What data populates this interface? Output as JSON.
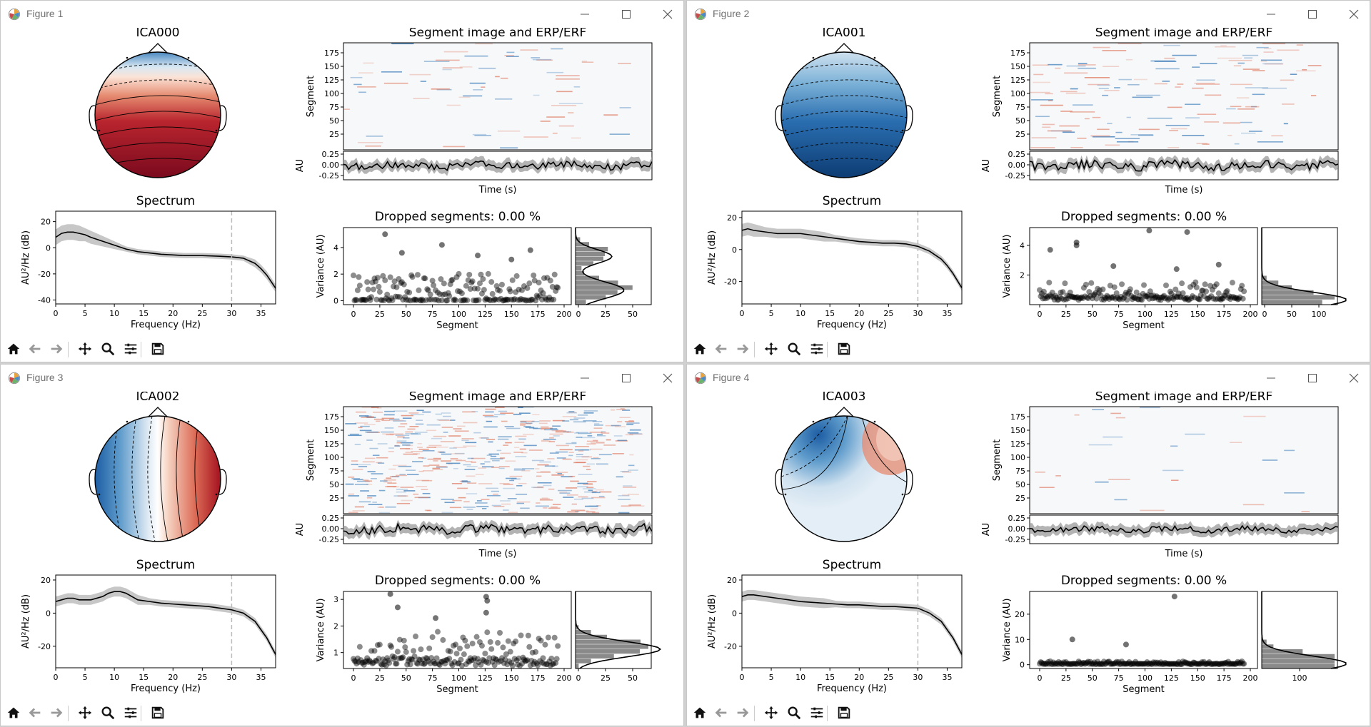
{
  "window_controls": {
    "minimize": "minimize",
    "maximize": "maximize",
    "close": "close"
  },
  "toolbar_icons": [
    "home-icon",
    "back-arrow-icon",
    "forward-arrow-icon",
    "pan-icon",
    "zoom-icon",
    "configure-subplots-icon",
    "save-icon"
  ],
  "figures": [
    {
      "title": "Figure 1",
      "component": "ICA000",
      "topomap": {
        "pattern": "front-blue-back-red",
        "colors": {
          "positive": "#b2182b",
          "negative": "#2166ac"
        }
      },
      "segment_image": {
        "title": "Segment image and ERP/ERF",
        "ylabel": "Segment",
        "yticks": [
          "175",
          "150",
          "125",
          "100",
          "75",
          "50",
          "25"
        ],
        "density": "low"
      },
      "erp": {
        "ylabel": "AU",
        "yticks": [
          "0.25",
          "0.00",
          "-0.25"
        ],
        "xlabel": "Time (s)"
      },
      "spectrum": {
        "title": "Spectrum",
        "ylabel": "AU²/Hz (dB)",
        "xlabel": "Frequency (Hz)",
        "yticks": [
          "20",
          "0",
          "-20",
          "-40"
        ],
        "ylim": [
          -43,
          28
        ],
        "xticks": [
          "0",
          "5",
          "10",
          "15",
          "20",
          "25",
          "30",
          "35"
        ],
        "xlim": [
          0,
          37.5
        ],
        "cutoff_hz": 30,
        "x": [
          0,
          1,
          2,
          3,
          4,
          5,
          6,
          8,
          10,
          12,
          14,
          16,
          18,
          20,
          22,
          25,
          28,
          30,
          32,
          34,
          35,
          36,
          37.5
        ],
        "y": [
          8,
          11,
          12,
          12,
          11,
          10,
          8,
          5,
          2,
          -1,
          -3,
          -4,
          -5,
          -5.5,
          -6,
          -6,
          -6.5,
          -7,
          -8,
          -12,
          -16,
          -21,
          -31
        ],
        "band": [
          6,
          6,
          6,
          6,
          6,
          5,
          5,
          4,
          3,
          2,
          2,
          2,
          2,
          2,
          2,
          2,
          2,
          2,
          2,
          3,
          3,
          3,
          3
        ]
      },
      "dropped": {
        "title": "Dropped segments: 0.00 %",
        "ylabel": "Variance (AU)",
        "xlabel": "Segment",
        "yticks": [
          "4",
          "2",
          "0"
        ],
        "ylim": [
          -0.3,
          5.5
        ],
        "xticks": [
          "0",
          "25",
          "50",
          "75",
          "100",
          "125",
          "150",
          "175",
          "200"
        ],
        "hist_xticks": [
          "0",
          "25",
          "50"
        ],
        "spread": [
          0,
          0.2,
          1.1,
          2.2
        ],
        "outliers": [
          {
            "x": 30,
            "y": 5
          },
          {
            "x": 84,
            "y": 4.2
          },
          {
            "x": 168,
            "y": 3.8
          },
          {
            "x": 46,
            "y": 3.6
          },
          {
            "x": 118,
            "y": 3.4
          },
          {
            "x": 150,
            "y": 3.1
          }
        ]
      }
    },
    {
      "title": "Figure 2",
      "component": "ICA001",
      "topomap": {
        "pattern": "all-blue",
        "colors": {
          "positive": "#b2182b",
          "negative": "#2166ac"
        }
      },
      "segment_image": {
        "title": "Segment image and ERP/ERF",
        "ylabel": "Segment",
        "yticks": [
          "175",
          "150",
          "125",
          "100",
          "75",
          "50",
          "25"
        ],
        "density": "medium"
      },
      "erp": {
        "ylabel": "AU",
        "yticks": [
          "0.25",
          "0.00",
          "-0.25"
        ],
        "xlabel": "Time (s)"
      },
      "spectrum": {
        "title": "Spectrum",
        "ylabel": "AU²/Hz (dB)",
        "xlabel": "Frequency (Hz)",
        "yticks": [
          "20",
          "0",
          "-20"
        ],
        "ylim": [
          -34,
          24
        ],
        "xticks": [
          "0",
          "5",
          "10",
          "15",
          "20",
          "25",
          "30",
          "35"
        ],
        "xlim": [
          0,
          37.5
        ],
        "cutoff_hz": 30,
        "x": [
          0,
          1,
          2,
          4,
          6,
          8,
          10,
          12,
          14,
          16,
          18,
          20,
          22,
          24,
          26,
          28,
          30,
          32,
          34,
          35,
          36,
          37.5
        ],
        "y": [
          12,
          13,
          12,
          11,
          10,
          10,
          10,
          9,
          8,
          7,
          6,
          5,
          4.5,
          4,
          4,
          3.5,
          2,
          -1,
          -6,
          -10,
          -15,
          -24
        ],
        "band": [
          4,
          4,
          4,
          3,
          3,
          3,
          3,
          3,
          3,
          2,
          2,
          2,
          2,
          2,
          2,
          2,
          2,
          2,
          2,
          2,
          2,
          2
        ]
      },
      "dropped": {
        "title": "Dropped segments: 0.00 %",
        "ylabel": "Variance (AU)",
        "xlabel": "Segment",
        "yticks": [
          "4",
          "2"
        ],
        "ylim": [
          0,
          5.2
        ],
        "xticks": [
          "0",
          "25",
          "50",
          "75",
          "100",
          "125",
          "150",
          "175",
          "200"
        ],
        "hist_xticks": [
          "0",
          "50",
          "100"
        ],
        "spread": [
          0.3,
          0.6,
          1.0,
          1.6
        ],
        "outliers": [
          {
            "x": 104,
            "y": 5
          },
          {
            "x": 140,
            "y": 4.9
          },
          {
            "x": 35,
            "y": 4.2
          },
          {
            "x": 35,
            "y": 4
          },
          {
            "x": 10,
            "y": 3.7
          },
          {
            "x": 70,
            "y": 2.6
          },
          {
            "x": 130,
            "y": 2.4
          },
          {
            "x": 170,
            "y": 2.7
          }
        ]
      }
    },
    {
      "title": "Figure 3",
      "component": "ICA002",
      "topomap": {
        "pattern": "left-blue-right-red",
        "colors": {
          "positive": "#b2182b",
          "negative": "#2166ac"
        }
      },
      "segment_image": {
        "title": "Segment image and ERP/ERF",
        "ylabel": "Segment",
        "yticks": [
          "175",
          "150",
          "125",
          "100",
          "75",
          "50",
          "25"
        ],
        "density": "high"
      },
      "erp": {
        "ylabel": "AU",
        "yticks": [
          "0.25",
          "0.00",
          "-0.25"
        ],
        "xlabel": "Time (s)"
      },
      "spectrum": {
        "title": "Spectrum",
        "ylabel": "AU²/Hz (dB)",
        "xlabel": "Frequency (Hz)",
        "yticks": [
          "20",
          "0",
          "-20"
        ],
        "ylim": [
          -33,
          23
        ],
        "xticks": [
          "0",
          "5",
          "10",
          "15",
          "20",
          "25",
          "30",
          "35"
        ],
        "xlim": [
          0,
          37.5
        ],
        "cutoff_hz": 30,
        "x": [
          0,
          1,
          2,
          3,
          4,
          6,
          8,
          9,
          10,
          11,
          12,
          13,
          14,
          16,
          18,
          20,
          22,
          24,
          26,
          28,
          30,
          32,
          34,
          35,
          36,
          37.5
        ],
        "y": [
          7,
          8,
          9,
          9,
          8,
          8,
          10,
          12,
          13,
          13,
          12,
          10,
          8,
          7,
          6,
          5.5,
          5,
          4.5,
          4,
          3,
          2,
          0,
          -5,
          -10,
          -15,
          -25
        ],
        "band": [
          3,
          3,
          3,
          3,
          3,
          3,
          3,
          3,
          3,
          3,
          3,
          3,
          3,
          2,
          2,
          2,
          2,
          2,
          2,
          2,
          2,
          2,
          2,
          2,
          2,
          2
        ]
      },
      "dropped": {
        "title": "Dropped segments: 0.00 %",
        "ylabel": "Variance (AU)",
        "xlabel": "Segment",
        "yticks": [
          "3",
          "2",
          "1"
        ],
        "ylim": [
          0.4,
          3.3
        ],
        "xticks": [
          "0",
          "25",
          "50",
          "75",
          "100",
          "125",
          "150",
          "175",
          "200"
        ],
        "hist_xticks": [
          "0",
          "25",
          "50"
        ],
        "spread": [
          0.5,
          0.8,
          1.2,
          1.8
        ],
        "outliers": [
          {
            "x": 35,
            "y": 3.2
          },
          {
            "x": 126,
            "y": 3.1
          },
          {
            "x": 127,
            "y": 2.95
          },
          {
            "x": 42,
            "y": 2.7
          },
          {
            "x": 126,
            "y": 2.5
          },
          {
            "x": 78,
            "y": 2.3
          }
        ]
      }
    },
    {
      "title": "Figure 4",
      "component": "ICA003",
      "topomap": {
        "pattern": "left-front-blue-right-front-red",
        "colors": {
          "positive": "#b2182b",
          "negative": "#2166ac"
        }
      },
      "segment_image": {
        "title": "Segment image and ERP/ERF",
        "ylabel": "Segment",
        "yticks": [
          "175",
          "150",
          "125",
          "100",
          "75",
          "50",
          "25"
        ],
        "density": "sparse"
      },
      "erp": {
        "ylabel": "AU",
        "yticks": [
          "0.25",
          "0.00",
          "-0.25"
        ],
        "xlabel": "Time (s)"
      },
      "spectrum": {
        "title": "Spectrum",
        "ylabel": "AU²/Hz (dB)",
        "xlabel": "Frequency (Hz)",
        "yticks": [
          "20",
          "0",
          "-20"
        ],
        "ylim": [
          -33,
          23
        ],
        "xticks": [
          "0",
          "5",
          "10",
          "15",
          "20",
          "25",
          "30",
          "35"
        ],
        "xlim": [
          0,
          37.5
        ],
        "cutoff_hz": 30,
        "x": [
          0,
          1,
          2,
          4,
          6,
          8,
          10,
          12,
          14,
          16,
          18,
          20,
          22,
          24,
          26,
          28,
          30,
          32,
          34,
          35,
          36,
          37.5
        ],
        "y": [
          10,
          11,
          11,
          10,
          9,
          8,
          7,
          6.5,
          6,
          5.5,
          5,
          5,
          4.5,
          4,
          4,
          3.5,
          3,
          0,
          -5,
          -10,
          -15,
          -25
        ],
        "band": [
          3,
          3,
          3,
          3,
          3,
          3,
          3,
          3,
          3,
          2,
          2,
          2,
          2,
          2,
          2,
          2,
          2,
          2,
          2,
          2,
          2,
          2
        ]
      },
      "dropped": {
        "title": "Dropped segments: 0.00 %",
        "ylabel": "Variance (AU)",
        "xlabel": "Segment",
        "yticks": [
          "20",
          "10",
          "0"
        ],
        "ylim": [
          -1.5,
          29
        ],
        "xticks": [
          "0",
          "25",
          "50",
          "75",
          "100",
          "125",
          "150",
          "175",
          "200"
        ],
        "hist_xticks": [
          "100"
        ],
        "spread": [
          0.2,
          0.4,
          0.8,
          1.4
        ],
        "outliers": [
          {
            "x": 128,
            "y": 27
          },
          {
            "x": 31,
            "y": 10
          },
          {
            "x": 82,
            "y": 8
          }
        ]
      }
    }
  ]
}
